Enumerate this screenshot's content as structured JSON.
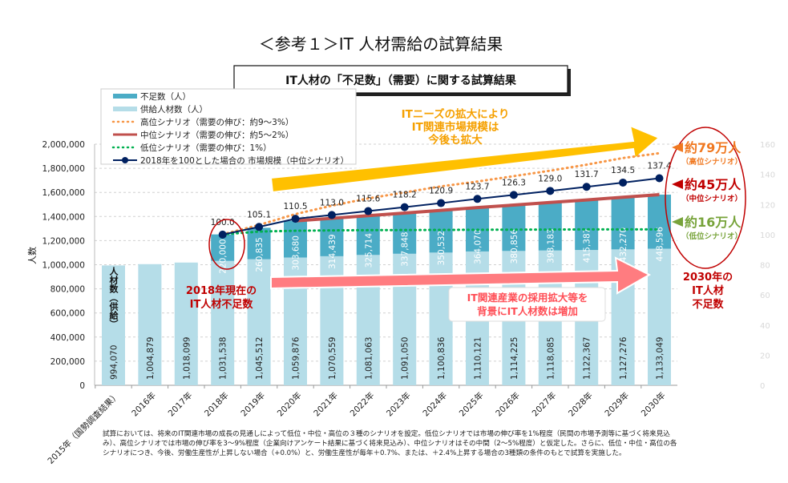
{
  "header": {
    "title": "＜参考１＞IT 人材需給の試算結果",
    "subtitle": "IT人材の「不足数」（需要）に関する試算結果"
  },
  "chart_data": {
    "type": "bar",
    "title": "IT人材の「不足数」（需要）に関する試算結果",
    "ylabel": "人数",
    "ylim": [
      0,
      2000000
    ],
    "y_ticks": [
      "0",
      "200,000",
      "400,000",
      "600,000",
      "800,000",
      "1,000,000",
      "1,200,000",
      "1,400,000",
      "1,600,000",
      "1,800,000",
      "2,000,000"
    ],
    "y2lim": [
      0,
      160
    ],
    "y2_ticks": [
      "0",
      "20",
      "40",
      "60",
      "80",
      "100",
      "120",
      "140",
      "160"
    ],
    "grid": true,
    "legend_position": "top-left",
    "categories": [
      "2015年（国勢調査結果）",
      "2016年",
      "2017年",
      "2018年",
      "2019年",
      "2020年",
      "2021年",
      "2022年",
      "2023年",
      "2024年",
      "2025年",
      "2026年",
      "2027年",
      "2028年",
      "2029年",
      "2030年"
    ],
    "series": [
      {
        "name": "供給人材数（人）",
        "type": "bar",
        "color": "#b5dde8",
        "values": [
          994070,
          1004879,
          1018099,
          1031538,
          1045512,
          1059876,
          1070559,
          1081063,
          1091050,
          1100836,
          1110121,
          1114225,
          1118085,
          1122367,
          1127276,
          1133049
        ]
      },
      {
        "name": "不足数（人）",
        "type": "bar-stacked",
        "color": "#4bacc6",
        "values": [
          null,
          null,
          null,
          220000,
          260835,
          303680,
          314439,
          325714,
          337848,
          350532,
          364070,
          380856,
          398183,
          415387,
          432270,
          448596
        ]
      },
      {
        "name": "高位シナリオ（需要の伸び：約9～3%）",
        "type": "dotted-line",
        "color": "#f79646",
        "values": [
          null,
          null,
          null,
          1251538,
          1330000,
          1420000,
          1490000,
          1550000,
          1600000,
          1650000,
          1690000,
          1735000,
          1780000,
          1830000,
          1885000,
          1925000
        ]
      },
      {
        "name": "中位シナリオ（需要の伸び：約5～2%）",
        "type": "line",
        "color": "#c0504d",
        "values": [
          null,
          null,
          null,
          null,
          null,
          1363556,
          1384998,
          1406777,
          1428898,
          1451368,
          1474191,
          1495081,
          1516268,
          1537754,
          1559546,
          1581645
        ]
      },
      {
        "name": "低位シナリオ（需要の伸び：1%）",
        "type": "dotted-line",
        "color": "#00b050",
        "values": [
          null,
          null,
          null,
          1251538,
          1275000,
          1282000,
          1285000,
          1287000,
          1288000,
          1289000,
          1290000,
          1291000,
          1292000,
          1293000,
          1293000,
          1293000
        ]
      },
      {
        "name": "2018年を100とした場合の 市場規模（中位シナリオ）",
        "type": "line-marker",
        "axis": "right",
        "color": "#002060",
        "values": [
          null,
          null,
          null,
          100.0,
          105.1,
          110.5,
          113.0,
          115.6,
          118.2,
          120.9,
          123.7,
          126.3,
          129.0,
          131.7,
          134.5,
          137.4
        ],
        "labels": [
          "",
          "",
          "",
          "100.0",
          "105.1",
          "110.5",
          "113.0",
          "115.6",
          "118.2",
          "120.9",
          "123.7",
          "126.3",
          "129.0",
          "131.7",
          "134.5",
          "137.4"
        ]
      }
    ],
    "supply_labels": [
      "994,070",
      "1,004,879",
      "1,018,099",
      "1,031,538",
      "1,045,512",
      "1,059,876",
      "1,070,559",
      "1,081,063",
      "1,091,050",
      "1,100,836",
      "1,110,121",
      "1,114,225",
      "1,118,085",
      "1,122,367",
      "1,127,276",
      "1,133,049"
    ],
    "shortage_labels": [
      "",
      "",
      "",
      "220,000",
      "260,835",
      "303,680",
      "314,439",
      "325,714",
      "337,848",
      "350,532",
      "364,070",
      "380,856",
      "398,183",
      "415,387",
      "432,270",
      "448,596"
    ]
  },
  "annotations": {
    "supply_bar_label": "人材数（供給）",
    "market_growth": [
      "ITニーズの拡大により",
      "IT関連市場規模は",
      "今後も拡大"
    ],
    "shortage_2018": [
      "2018年現在の",
      "IT人材不足数"
    ],
    "supply_growth": [
      "IT関連産業の採用拡大等を",
      "背景にIT人材数は増加"
    ],
    "high": {
      "value": "約79万人",
      "label": "（高位シナリオ）",
      "color": "#f07820"
    },
    "mid": {
      "value": "約45万人",
      "label": "（中位シナリオ）",
      "color": "#c00000"
    },
    "low": {
      "value": "約16万人",
      "label": "（低位シナリオ）",
      "color": "#77a33a"
    },
    "shortage_2030": [
      "2030年の",
      "IT人材",
      "不足数"
    ]
  },
  "footnote": "試算においては、将来のIT関連市場の成長の見通しによって低位・中位・高位の３種のシナリオを設定。低位シナリオでは市場の伸び率を1%程度（民間の市場予測等に基づく将来見込み）、高位シナリオでは市場の伸び率を3～9%程度（企業向けアンケート結果に基づく将来見込み）、中位シナリオはその中間（2～5%程度）と仮定した。さらに、低位・中位・高位の各シナリオにつき、今後、労働生産性が上昇しない場合（+0.0%）と、労働生産性が毎年＋0.7%、または、＋2.4%上昇する場合の3種類の条件のもとで試算を実施した。"
}
